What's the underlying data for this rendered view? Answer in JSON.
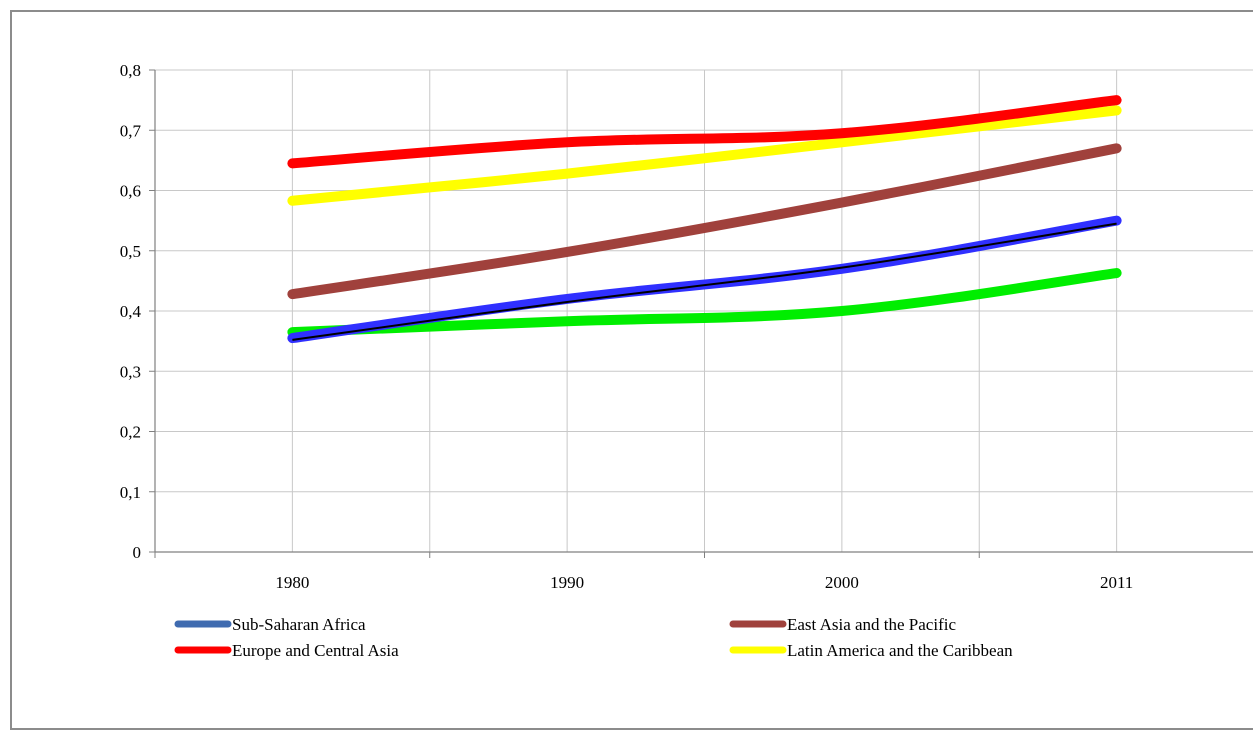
{
  "chart_data": {
    "type": "line",
    "categories": [
      "1980",
      "1990",
      "2000",
      "2011"
    ],
    "y_ticks": [
      "0",
      "0,1",
      "0,2",
      "0,3",
      "0,4",
      "0,5",
      "0,6",
      "0,7",
      "0,8"
    ],
    "ylim": [
      0,
      0.8
    ],
    "grid": true,
    "legend_position": "bottom",
    "series": [
      {
        "name": "Sub-Saharan Africa",
        "values": [
          0.355,
          0.42,
          0.47,
          0.55
        ],
        "color": "#3030ff",
        "legend_color": "#3f6bb0"
      },
      {
        "name": "East Asia and the Pacific",
        "values": [
          0.428,
          0.498,
          0.58,
          0.67
        ],
        "color": "#a0413c",
        "legend_color": "#a0413c"
      },
      {
        "name": "Europe and Central Asia",
        "values": [
          0.645,
          0.68,
          0.695,
          0.75
        ],
        "color": "#ff0000",
        "legend_color": "#ff0000"
      },
      {
        "name": "Latin America and the Caribbean",
        "values": [
          0.583,
          0.628,
          0.68,
          0.733
        ],
        "color": "#ffff00",
        "legend_color": "#ffff00"
      },
      {
        "values": [
          0.365,
          0.383,
          0.4,
          0.463
        ],
        "color": "#00ee00"
      }
    ],
    "trendline": {
      "values": [
        0.352,
        0.415,
        0.472,
        0.545
      ],
      "color": "#000000"
    }
  }
}
